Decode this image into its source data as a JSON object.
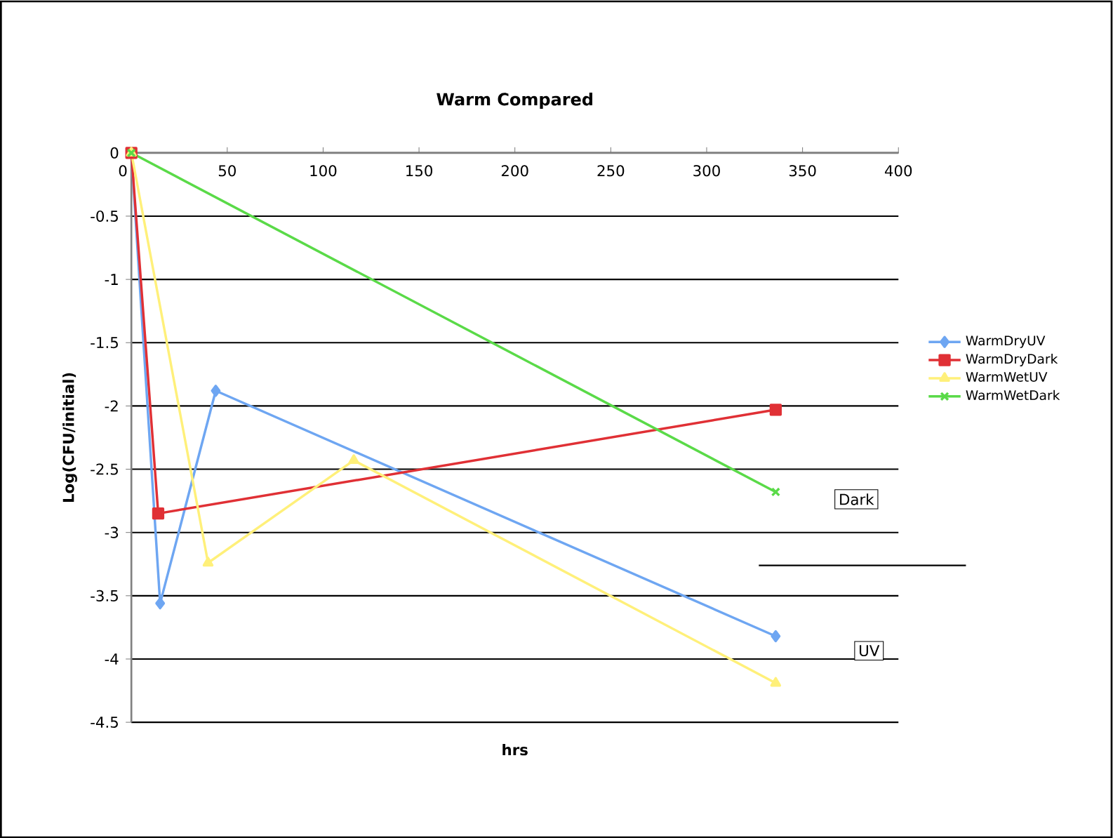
{
  "chart_data": {
    "type": "line",
    "title": "Warm Compared",
    "xlabel": "hrs",
    "ylabel": "Log(CFU/initial)",
    "xlim": [
      0,
      400
    ],
    "xticks": [
      0,
      50,
      100,
      150,
      200,
      250,
      300,
      350,
      400
    ],
    "ylim": [
      -4.5,
      0
    ],
    "yticks": [
      0,
      -0.5,
      -1,
      -1.5,
      -2,
      -2.5,
      -3,
      -3.5,
      -4,
      -4.5
    ],
    "grid": "y",
    "legend": "right",
    "series": [
      {
        "name": "WarmDryUV",
        "color": "#6ea6f2",
        "marker": "diamond",
        "x": [
          0,
          15,
          44,
          336
        ],
        "values": [
          0,
          -3.56,
          -1.88,
          -3.82
        ]
      },
      {
        "name": "WarmDryDark",
        "color": "#e03035",
        "marker": "square",
        "x": [
          0,
          14,
          336
        ],
        "values": [
          0,
          -2.85,
          -2.03
        ]
      },
      {
        "name": "WarmWetUV",
        "color": "#fff07a",
        "marker": "triangle",
        "x": [
          0,
          40,
          116,
          336
        ],
        "values": [
          0,
          -3.24,
          -2.43,
          -4.19
        ]
      },
      {
        "name": "WarmWetDark",
        "color": "#5ada48",
        "marker": "cross",
        "x": [
          0,
          336
        ],
        "values": [
          0,
          -2.68
        ]
      }
    ],
    "ref_lines": [
      {
        "axis": "y",
        "value": -3.26,
        "color": "#000000"
      }
    ],
    "annotations": [
      "Dark",
      "UV"
    ]
  }
}
